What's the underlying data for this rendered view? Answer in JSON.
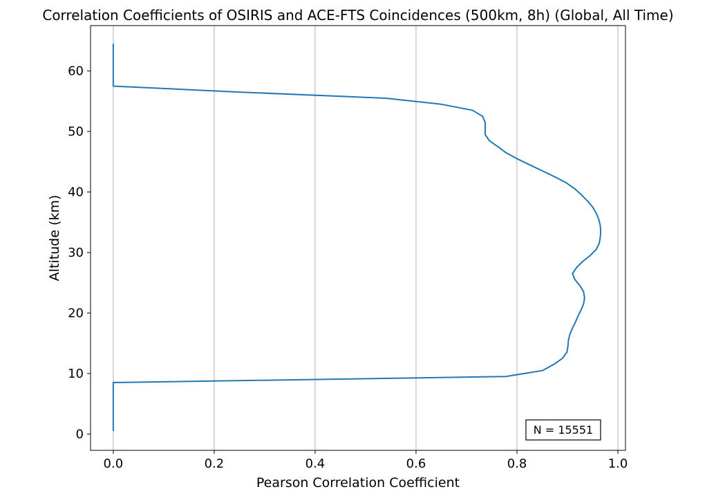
{
  "chart_data": {
    "type": "line",
    "title": "Correlation Coefficients of OSIRIS and ACE-FTS Coincidences (500km, 8h) (Global, All Time)",
    "xlabel": "Pearson Correlation Coefficient",
    "ylabel": "Altitude (km)",
    "xlim": [
      -0.045,
      1.015
    ],
    "ylim": [
      -2.7,
      67.5
    ],
    "xticks": [
      0.0,
      0.2,
      0.4,
      0.6,
      0.8,
      1.0
    ],
    "xtick_labels": [
      "0.0",
      "0.2",
      "0.4",
      "0.6",
      "0.8",
      "1.0"
    ],
    "yticks": [
      0,
      10,
      20,
      30,
      40,
      50,
      60
    ],
    "ytick_labels": [
      "0",
      "10",
      "20",
      "30",
      "40",
      "50",
      "60"
    ],
    "grid": "x-axis vertical lines",
    "line_color": "#1f77b4",
    "annotation": "N = 15551",
    "annotation_position": "bottom-right",
    "series": [
      {
        "x": [
          0.0,
          0.0,
          0.0,
          0.0,
          0.0,
          0.0,
          0.0,
          0.0,
          0.0,
          0.778,
          0.851,
          0.873,
          0.89,
          0.899,
          0.901,
          0.902,
          0.905,
          0.91,
          0.916,
          0.921,
          0.927,
          0.932,
          0.934,
          0.932,
          0.925,
          0.915,
          0.91,
          0.918,
          0.93,
          0.945,
          0.957,
          0.963,
          0.965,
          0.966,
          0.965,
          0.962,
          0.957,
          0.95,
          0.94,
          0.928,
          0.915,
          0.898,
          0.875,
          0.85,
          0.825,
          0.8,
          0.778,
          0.762,
          0.745,
          0.737,
          0.737,
          0.737,
          0.732,
          0.712,
          0.65,
          0.54,
          0.253,
          0.0,
          0.0,
          0.0,
          0.0,
          0.0,
          0.0,
          0.0,
          0.0
        ],
        "y": [
          0.5,
          1.5,
          2.5,
          3.5,
          4.5,
          5.5,
          6.5,
          7.5,
          8.5,
          9.5,
          10.5,
          11.5,
          12.5,
          13.5,
          14.5,
          15.5,
          16.5,
          17.5,
          18.5,
          19.5,
          20.5,
          21.5,
          22.5,
          23.5,
          24.5,
          25.5,
          26.5,
          27.5,
          28.5,
          29.5,
          30.5,
          31.5,
          32.5,
          33.5,
          34.5,
          35.5,
          36.5,
          37.5,
          38.5,
          39.5,
          40.5,
          41.5,
          42.5,
          43.5,
          44.5,
          45.5,
          46.5,
          47.5,
          48.5,
          49.5,
          50.5,
          51.5,
          52.5,
          53.5,
          54.5,
          55.5,
          56.5,
          57.5,
          58.5,
          59.5,
          60.5,
          61.5,
          62.5,
          63.5,
          64.5
        ]
      }
    ]
  }
}
